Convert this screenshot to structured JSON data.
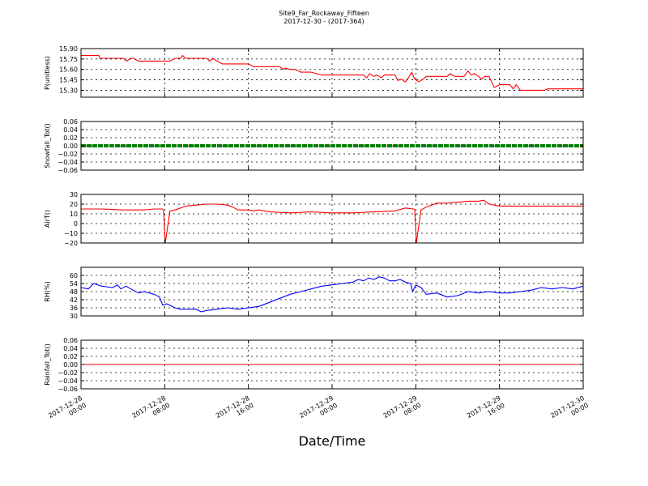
{
  "figure": {
    "title_line1": "Site9_Far_Rockaway_Fifteen",
    "title_line2": "2017-12-30 - (2017-364)",
    "xlabel": "Date/Time"
  },
  "chart_data": [
    {
      "type": "line",
      "ylabel": "P(unitless)",
      "color": "#ff0000",
      "ylim": [
        15.2,
        15.9
      ],
      "yticks": [
        "15.30",
        "15.45",
        "15.60",
        "15.75",
        "15.90"
      ],
      "ytick_values": [
        15.3,
        15.45,
        15.6,
        15.75,
        15.9
      ],
      "xlim": [
        0,
        48
      ],
      "series": [
        {
          "x": [
            0,
            1.7,
            1.8,
            4,
            4.4,
            4.7,
            5,
            5.5,
            6,
            8.5,
            9,
            9.5,
            9.7,
            10,
            12,
            12.3,
            12.6,
            13,
            13.5,
            16,
            16.5,
            19,
            19.3,
            19.5,
            20,
            20.5,
            21,
            22,
            23,
            26,
            27,
            27.3,
            27.6,
            28,
            28.3,
            28.7,
            29,
            30,
            30.3,
            30.6,
            31,
            31.3,
            31.6,
            31.9,
            32.3,
            32.7,
            33,
            33.5,
            34,
            35,
            35.3,
            35.7,
            36,
            36.3,
            36.6,
            37,
            37.3,
            37.6,
            38,
            38.3,
            38.6,
            39,
            39.5,
            40,
            41,
            41.3,
            41.6,
            42,
            42.7,
            43,
            43.5,
            43.8,
            44,
            44.3,
            44.6,
            48
          ],
          "y": [
            15.8,
            15.8,
            15.76,
            15.76,
            15.72,
            15.76,
            15.76,
            15.72,
            15.72,
            15.72,
            15.76,
            15.76,
            15.8,
            15.76,
            15.76,
            15.72,
            15.76,
            15.72,
            15.68,
            15.68,
            15.64,
            15.64,
            15.6,
            15.62,
            15.6,
            15.6,
            15.56,
            15.56,
            15.52,
            15.52,
            15.52,
            15.48,
            15.54,
            15.5,
            15.52,
            15.48,
            15.52,
            15.52,
            15.44,
            15.46,
            15.42,
            15.48,
            15.56,
            15.46,
            15.42,
            15.46,
            15.5,
            15.5,
            15.5,
            15.5,
            15.54,
            15.5,
            15.5,
            15.5,
            15.5,
            15.58,
            15.52,
            15.54,
            15.5,
            15.46,
            15.5,
            15.5,
            15.34,
            15.38,
            15.38,
            15.32,
            15.38,
            15.3,
            15.3,
            15.3,
            15.3,
            15.3,
            15.3,
            15.3,
            15.32,
            15.32
          ]
        }
      ]
    },
    {
      "type": "line",
      "ylabel": "Snowfall_Tot()",
      "color": "#008000",
      "thick": true,
      "ylim": [
        -0.06,
        0.06
      ],
      "yticks": [
        "−0.06",
        "−0.04",
        "−0.02",
        "0.00",
        "0.02",
        "0.04",
        "0.06"
      ],
      "ytick_values": [
        -0.06,
        -0.04,
        -0.02,
        0.0,
        0.02,
        0.04,
        0.06
      ],
      "xlim": [
        0,
        48
      ],
      "series": [
        {
          "x": [
            0,
            48
          ],
          "y": [
            0,
            0
          ]
        }
      ]
    },
    {
      "type": "line",
      "ylabel": "AirT()",
      "color": "#ff0000",
      "ylim": [
        -20,
        30
      ],
      "yticks": [
        "−20",
        "−10",
        "0",
        "10",
        "20",
        "30"
      ],
      "ytick_values": [
        -20,
        -10,
        0,
        10,
        20,
        30
      ],
      "xlim": [
        0,
        48
      ],
      "series": [
        {
          "x": [
            0,
            2,
            4,
            5,
            6,
            7,
            7.8,
            7.9,
            8.05,
            8.5,
            9,
            10,
            11,
            12,
            13,
            14,
            14.5,
            15,
            15.5,
            16,
            16.5,
            17,
            18,
            20,
            22,
            24,
            26,
            28,
            30,
            31,
            31.8,
            31.9,
            32.05,
            32.5,
            33,
            34,
            35,
            36,
            37,
            38,
            38.5,
            39,
            40,
            41,
            42,
            44,
            46,
            48
          ],
          "y": [
            15,
            15,
            14,
            14,
            14,
            15,
            15,
            13,
            -20,
            13,
            14,
            18,
            19,
            20,
            20,
            19,
            17,
            14,
            14,
            14,
            13,
            14,
            12,
            11,
            12,
            11,
            11,
            12,
            13,
            16,
            15,
            14,
            -20,
            14,
            17,
            21,
            21,
            22,
            23,
            23,
            24,
            20,
            18,
            18,
            18,
            18,
            18,
            18
          ]
        }
      ]
    },
    {
      "type": "line",
      "ylabel": "RH(%)",
      "color": "#0000ff",
      "ylim": [
        30,
        66
      ],
      "yticks": [
        "30",
        "36",
        "42",
        "48",
        "54",
        "60"
      ],
      "ytick_values": [
        30,
        36,
        42,
        48,
        54,
        60
      ],
      "xlim": [
        0,
        48
      ],
      "series": [
        {
          "x": [
            0,
            0.7,
            1.2,
            2,
            3,
            3.5,
            3.8,
            4.3,
            5,
            5.5,
            6,
            7,
            7.5,
            7.8,
            8.2,
            9,
            9.5,
            10,
            11,
            11.5,
            12,
            13,
            14,
            15,
            16,
            17,
            18,
            19,
            20,
            21,
            22,
            23,
            24,
            25,
            26,
            26.5,
            27,
            27.5,
            28,
            28.5,
            29,
            29.5,
            30,
            30.5,
            31,
            31.5,
            31.7,
            32,
            32.5,
            33,
            34,
            35,
            36,
            37,
            38,
            39,
            40,
            41,
            42,
            43,
            44,
            45,
            46,
            47,
            48
          ],
          "y": [
            51,
            50,
            54,
            52,
            51,
            53,
            50,
            52,
            49,
            47,
            48,
            46,
            44,
            38,
            39,
            36,
            35,
            35,
            35,
            33,
            34,
            35,
            36,
            35,
            36,
            37,
            40,
            43,
            46,
            48,
            50,
            52,
            53,
            54,
            55,
            57,
            56,
            58,
            57,
            59,
            58,
            56,
            56,
            57,
            55,
            54,
            48,
            53,
            51,
            46,
            47,
            44,
            45,
            48,
            47,
            48,
            47,
            47,
            48,
            49,
            51,
            50,
            51,
            50,
            52
          ]
        }
      ]
    },
    {
      "type": "line",
      "ylabel": "Rainfall_Tot()",
      "color": "#ff0000",
      "ylim": [
        -0.06,
        0.06
      ],
      "yticks": [
        "−0.06",
        "−0.04",
        "−0.02",
        "0.00",
        "0.02",
        "0.04",
        "0.06"
      ],
      "ytick_values": [
        -0.06,
        -0.04,
        -0.02,
        0.0,
        0.02,
        0.04,
        0.06
      ],
      "xlim": [
        0,
        48
      ],
      "series": [
        {
          "x": [
            0,
            48
          ],
          "y": [
            0,
            0
          ]
        }
      ]
    }
  ],
  "xaxis": {
    "tick_values": [
      0,
      8,
      16,
      24,
      32,
      40,
      48
    ],
    "ticks": [
      {
        "line1": "2017-12-28",
        "line2": "00:00"
      },
      {
        "line1": "2017-12-28",
        "line2": "08:00"
      },
      {
        "line1": "2017-12-28",
        "line2": "16:00"
      },
      {
        "line1": "2017-12-29",
        "line2": "00:00"
      },
      {
        "line1": "2017-12-29",
        "line2": "08:00"
      },
      {
        "line1": "2017-12-29",
        "line2": "16:00"
      },
      {
        "line1": "2017-12-30",
        "line2": "00:00"
      }
    ]
  }
}
